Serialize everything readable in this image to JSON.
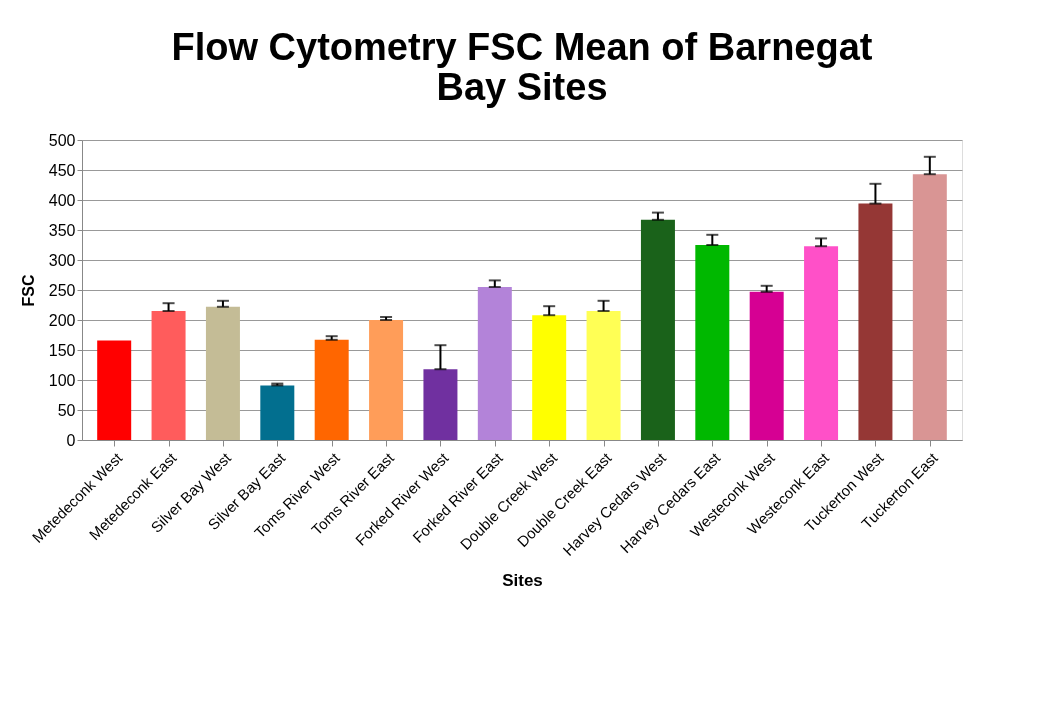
{
  "chart_data": {
    "type": "bar",
    "title": [
      "Flow Cytometry FSC Mean of Barnegat",
      "Bay Sites"
    ],
    "xlabel": "Sites",
    "ylabel": "FSC",
    "categories": [
      "Metedeconk West",
      "Metedeconk East",
      "Silver Bay West",
      "Silver Bay East",
      "Toms River West",
      "Toms River East",
      "Forked River West",
      "Forked River East",
      "Double Creek West",
      "Double Creek East",
      "Harvey Cedars West",
      "Harvey Cedars East",
      "Westeconk West",
      "Westeconk East",
      "Tuckerton West",
      "Tuckerton East"
    ],
    "values": [
      166,
      215,
      222,
      91,
      167,
      200,
      118,
      255,
      208,
      215,
      367,
      325,
      247,
      323,
      394,
      443
    ],
    "errors": [
      null,
      [
        215,
        228
      ],
      [
        222,
        232
      ],
      [
        91,
        94
      ],
      [
        167,
        173
      ],
      [
        200,
        205
      ],
      [
        118,
        158
      ],
      [
        255,
        266
      ],
      [
        208,
        223
      ],
      [
        215,
        232
      ],
      [
        367,
        379
      ],
      [
        325,
        342
      ],
      [
        247,
        257
      ],
      [
        323,
        336
      ],
      [
        394,
        427
      ],
      [
        443,
        472
      ]
    ],
    "colors": [
      "#ff0000",
      "#ff5c5c",
      "#c4bc96",
      "#026f8f",
      "#ff6600",
      "#ff9d59",
      "#7030a0",
      "#b383d9",
      "#ffff00",
      "#ffff55",
      "#1a621a",
      "#00b800",
      "#d60093",
      "#ff50c8",
      "#953735",
      "#d99594"
    ],
    "ylim": [
      0,
      500
    ],
    "yticks": [
      0,
      50,
      100,
      150,
      200,
      250,
      300,
      350,
      400,
      450,
      500
    ],
    "grid": "y"
  }
}
